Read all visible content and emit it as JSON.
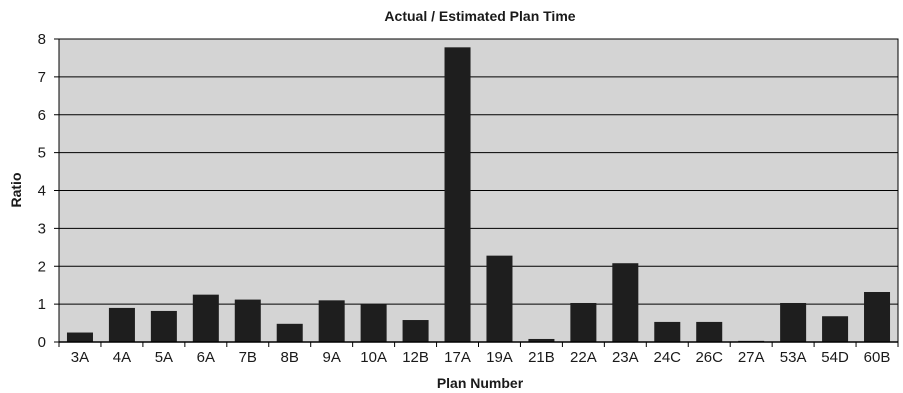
{
  "chart_data": {
    "type": "bar",
    "title": "Actual / Estimated Plan Time",
    "xlabel": "Plan Number",
    "ylabel": "Ratio",
    "ylim": [
      0,
      8
    ],
    "yticks": [
      0,
      1,
      2,
      3,
      4,
      5,
      6,
      7,
      8
    ],
    "grid": true,
    "categories": [
      "3A",
      "4A",
      "5A",
      "6A",
      "7B",
      "8B",
      "9A",
      "10A",
      "12B",
      "17A",
      "19A",
      "21B",
      "22A",
      "23A",
      "24C",
      "26C",
      "27A",
      "53A",
      "54D",
      "60B"
    ],
    "values": [
      0.25,
      0.9,
      0.82,
      1.25,
      1.12,
      0.48,
      1.1,
      1.0,
      0.58,
      7.78,
      2.28,
      0.08,
      1.03,
      2.08,
      0.53,
      0.53,
      0.03,
      1.03,
      0.68,
      1.32
    ],
    "colors": {
      "plot_bg": "#d4d4d4",
      "bar": "#1e1e1e",
      "grid": "#000000",
      "axis": "#000000"
    }
  }
}
